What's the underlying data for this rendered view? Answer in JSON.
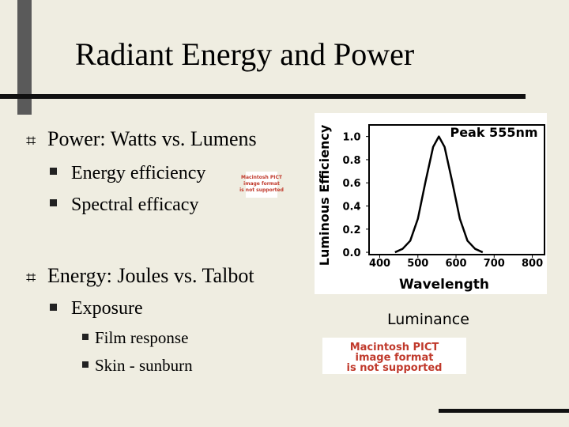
{
  "slide": {
    "title": "Radiant Energy and Power",
    "bullets": [
      {
        "text": "Power: Watts vs. Lumens",
        "items": [
          {
            "text": "Energy efficiency"
          },
          {
            "text": "Spectral efficacy"
          }
        ]
      },
      {
        "text": "Energy: Joules vs. Talbot",
        "items": [
          {
            "text": "Exposure",
            "items": [
              "Film response",
              "Skin - sunburn"
            ]
          }
        ]
      }
    ],
    "small_placeholder": [
      "Macintosh PICT",
      "image format",
      "is not supported"
    ],
    "caption": "Luminance",
    "placeholder": [
      "Macintosh PICT",
      "image format",
      "is not supported"
    ]
  },
  "chart_data": {
    "type": "line",
    "annotation": "Peak 555nm",
    "x_label": "Wavelength",
    "y_label": "Luminous Efficiency",
    "x": [
      440,
      460,
      480,
      500,
      520,
      540,
      555,
      570,
      590,
      610,
      630,
      650,
      670
    ],
    "values": [
      0.0,
      0.03,
      0.1,
      0.29,
      0.61,
      0.91,
      1.0,
      0.91,
      0.61,
      0.29,
      0.1,
      0.03,
      0.0
    ],
    "color": "#000000",
    "xlim": [
      372,
      832
    ],
    "ylim": [
      -0.02,
      1.1
    ],
    "xticks": [
      400,
      500,
      600,
      700,
      800
    ],
    "yticks": [
      {
        "value": 0,
        "label": "0.0"
      },
      0.2,
      0.4,
      0.6,
      0.8,
      {
        "value": 1,
        "label": "1.0"
      }
    ]
  }
}
